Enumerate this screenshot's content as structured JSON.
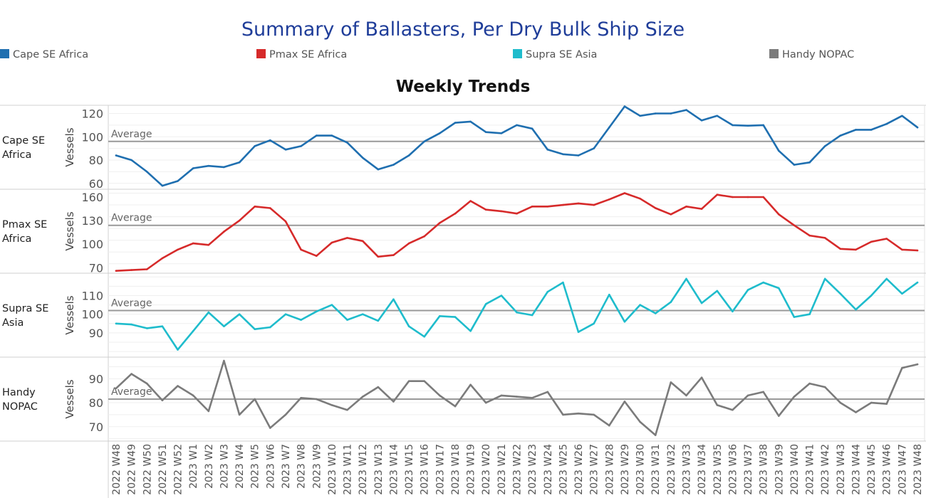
{
  "title": "Summary of Ballasters, Per Dry Bulk Ship Size",
  "subtitle": "Weekly Trends",
  "legend": [
    {
      "label": "Cape SE Africa",
      "color": "#1f6fb0"
    },
    {
      "label": "Pmax SE Africa",
      "color": "#d62a2a"
    },
    {
      "label": "Supra SE Asia",
      "color": "#1fbccc"
    },
    {
      "label": "Handy NOPAC",
      "color": "#7b7b7b"
    }
  ],
  "chart_data": {
    "type": "line",
    "x": [
      "2022 W48",
      "2022 W49",
      "2022 W50",
      "2022 W51",
      "2022 W52",
      "2023 W1",
      "2023 W2",
      "2023 W3",
      "2023 W4",
      "2023 W5",
      "2023 W6",
      "2023 W7",
      "2023 W8",
      "2023 W9",
      "2023 W10",
      "2023 W11",
      "2023 W12",
      "2023 W13",
      "2023 W14",
      "2023 W15",
      "2023 W16",
      "2023 W17",
      "2023 W18",
      "2023 W19",
      "2023 W20",
      "2023 W21",
      "2023 W22",
      "2023 W23",
      "2023 W24",
      "2023 W25",
      "2023 W26",
      "2023 W27",
      "2023 W28",
      "2023 W29",
      "2023 W30",
      "2023 W31",
      "2023 W32",
      "2023 W33",
      "2023 W34",
      "2023 W35",
      "2023 W36",
      "2023 W37",
      "2023 W38",
      "2023 W39",
      "2023 W40",
      "2023 W41",
      "2023 W42",
      "2023 W43",
      "2023 W44",
      "2023 W45",
      "2023 W46",
      "2023 W47",
      "2023 W48"
    ],
    "ylabel": "Vessels",
    "average_label": "Average",
    "grid": true,
    "panels": [
      {
        "row_label": [
          "Cape SE",
          "Africa"
        ],
        "color": "#1f6fb0",
        "ylim": [
          55,
          127
        ],
        "ticks": [
          60,
          80,
          100,
          120
        ],
        "average": 96,
        "values": [
          84,
          80,
          70,
          58,
          62,
          73,
          75,
          74,
          78,
          92,
          97,
          89,
          92,
          101,
          101,
          95,
          82,
          72,
          76,
          84,
          96,
          103,
          112,
          113,
          104,
          103,
          110,
          107,
          89,
          85,
          84,
          90,
          108,
          126,
          118,
          120,
          120,
          123,
          114,
          118,
          110,
          109.5,
          110,
          88,
          76,
          78,
          92,
          101,
          106,
          106,
          111,
          118,
          108
        ]
      },
      {
        "row_label": [
          "Pmax SE",
          "Africa"
        ],
        "color": "#d62a2a",
        "ylim": [
          63,
          170
        ],
        "ticks": [
          70,
          100,
          130,
          160
        ],
        "average": 124,
        "values": [
          66,
          67,
          68,
          82,
          93,
          101,
          99,
          116,
          130,
          148,
          146,
          129,
          93,
          85,
          102,
          108,
          104,
          84,
          86,
          101,
          110,
          127,
          139,
          155,
          144,
          142,
          139,
          148,
          148,
          150,
          152,
          150,
          157,
          165,
          158,
          146,
          138,
          148,
          145,
          163,
          160,
          160,
          160,
          138,
          124,
          111,
          108,
          94,
          93,
          103,
          107,
          93,
          92
        ]
      },
      {
        "row_label": [
          "Supra SE",
          "Asia"
        ],
        "color": "#1fbccc",
        "ylim": [
          77,
          122
        ],
        "ticks": [
          90,
          100,
          110
        ],
        "average": 102,
        "values": [
          95,
          94.5,
          92.5,
          93.5,
          81,
          91,
          101,
          93.5,
          100,
          92,
          93,
          100,
          97,
          101.5,
          105,
          97,
          100,
          96.5,
          108,
          93.5,
          88,
          99,
          98.5,
          91,
          105.5,
          110,
          101,
          99.5,
          112,
          117,
          90.5,
          95,
          110.5,
          96,
          105,
          100.5,
          106.5,
          119,
          106,
          112.5,
          101.5,
          113,
          117,
          114,
          98.5,
          100,
          119,
          111,
          102.5,
          110,
          119,
          111,
          117
        ]
      },
      {
        "row_label": [
          "Handy",
          "NOPAC"
        ],
        "color": "#7b7b7b",
        "ylim": [
          64,
          99
        ],
        "ticks": [
          70,
          80,
          90
        ],
        "average": 81.5,
        "values": [
          86,
          92,
          88,
          81,
          87,
          83,
          76.5,
          97.5,
          75,
          81.5,
          69.5,
          75,
          82,
          81.5,
          79,
          77,
          82.5,
          86.5,
          80.5,
          89,
          89,
          83,
          78.5,
          87.5,
          80,
          83,
          82.5,
          82,
          84.5,
          75,
          75.5,
          75,
          70.5,
          80.5,
          72,
          66.5,
          88.5,
          83,
          90.5,
          79,
          77,
          83,
          84.5,
          74.5,
          82.5,
          88,
          86.5,
          80,
          76,
          80,
          79.5,
          94.5,
          96
        ]
      }
    ]
  }
}
